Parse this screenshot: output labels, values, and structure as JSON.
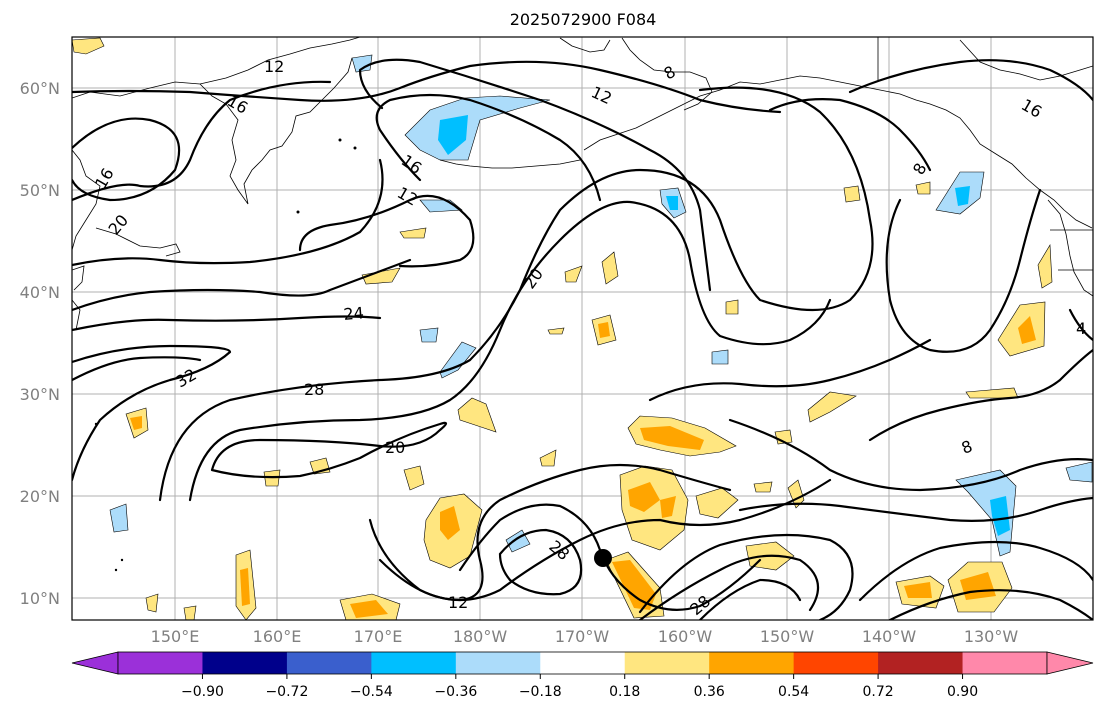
{
  "title": "2025072900 F084",
  "map": {
    "lat_labels": [
      "60°N",
      "50°N",
      "40°N",
      "30°N",
      "20°N",
      "10°N"
    ],
    "lon_labels": [
      "150°E",
      "160°E",
      "170°E",
      "180°W",
      "170°W",
      "160°W",
      "150°W",
      "140°W",
      "130°W"
    ],
    "contour_labels": [
      "12",
      "16",
      "16",
      "12",
      "16",
      "20",
      "24",
      "32",
      "28",
      "20",
      "12",
      "28",
      "28",
      "20",
      "12",
      "8",
      "8",
      "16",
      "8",
      "4"
    ],
    "marker": "storm-position-dot"
  },
  "colorbar": {
    "ticks": [
      "−0.90",
      "−0.72",
      "−0.54",
      "−0.36",
      "−0.18",
      "0.18",
      "0.36",
      "0.54",
      "0.72",
      "0.90"
    ],
    "colors": [
      "#9b30d9",
      "#00008b",
      "#3a5fcd",
      "#00bfff",
      "#acdcfa",
      "#ffffff",
      "#ffe680",
      "#ffa500",
      "#ff4500",
      "#b22222",
      "#ff88aa"
    ]
  }
}
